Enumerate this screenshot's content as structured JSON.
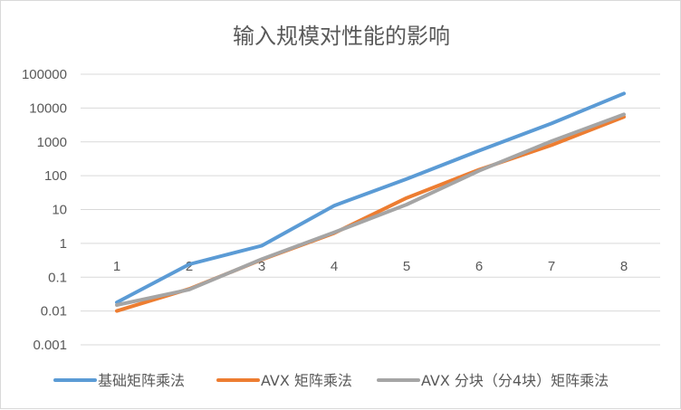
{
  "chart_data": {
    "type": "line",
    "title": "输入规模对性能的影响",
    "xlabel": "",
    "ylabel": "",
    "y_scale": "log",
    "ylim": [
      0.001,
      100000
    ],
    "y_ticks": [
      "0.001",
      "0.01",
      "0.1",
      "1",
      "10",
      "100",
      "1000",
      "10000",
      "100000"
    ],
    "categories": [
      "1",
      "2",
      "3",
      "4",
      "5",
      "6",
      "7",
      "8"
    ],
    "grid": true,
    "legend": "bottom",
    "series": [
      {
        "name": "基础矩阵乘法",
        "color": "#5b9bd5",
        "values": [
          0.018,
          0.24,
          0.85,
          13,
          80,
          550,
          3500,
          27000
        ]
      },
      {
        "name": "AVX 矩阵乘法",
        "color": "#ed7d31",
        "values": [
          0.01,
          0.045,
          0.33,
          2.0,
          22,
          150,
          800,
          5500
        ]
      },
      {
        "name": "AVX 分块（分4块）矩阵乘法",
        "color": "#a5a5a5",
        "values": [
          0.015,
          0.043,
          0.34,
          2.1,
          14,
          140,
          1050,
          6500
        ]
      }
    ]
  }
}
